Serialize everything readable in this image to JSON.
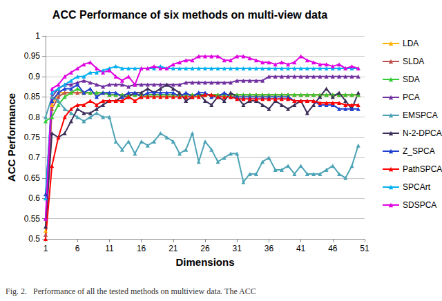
{
  "chart_data": {
    "type": "line",
    "title": "ACC Performance of six methods on multi-view data",
    "x_label": "Dimensions",
    "y_label": "ACC Performance",
    "caption": "Fig. 2.   Performance of all the tested methods on multiview data. The ACC",
    "marker": "triangle",
    "grid": true,
    "legend": "right",
    "x": [
      1,
      2,
      3,
      4,
      5,
      6,
      7,
      8,
      9,
      10,
      11,
      12,
      13,
      14,
      15,
      16,
      17,
      18,
      19,
      20,
      21,
      22,
      23,
      24,
      25,
      26,
      27,
      28,
      29,
      30,
      31,
      32,
      33,
      34,
      35,
      36,
      37,
      38,
      39,
      40,
      41,
      42,
      43,
      44,
      45,
      46,
      47,
      48,
      49,
      50
    ],
    "xlim": [
      1,
      51
    ],
    "xticks": [
      1,
      6,
      11,
      16,
      21,
      26,
      31,
      36,
      41,
      46,
      51
    ],
    "ylim": [
      0.5,
      1
    ],
    "yticks": [
      0.5,
      0.55,
      0.6,
      0.65,
      0.7,
      0.75,
      0.8,
      0.85,
      0.9,
      0.95,
      1
    ],
    "series": [
      {
        "name": "LDA",
        "color": "#FFB000",
        "values": [
          0.52,
          0.83,
          0.86,
          0.86,
          0.86,
          0.86,
          0.86,
          0.86,
          0.86,
          0.86,
          0.855,
          0.855,
          0.855,
          0.855,
          0.855,
          0.855,
          0.855,
          0.855,
          0.855,
          0.855,
          0.855,
          0.855,
          0.855,
          0.855,
          0.855,
          0.855,
          0.855,
          0.855,
          0.855,
          0.855,
          0.855,
          0.855,
          0.855,
          0.855,
          0.855,
          0.855,
          0.855,
          0.855,
          0.855,
          0.855,
          0.855,
          0.855,
          0.855,
          0.855,
          0.855,
          0.855,
          0.855,
          0.855,
          0.855,
          0.855
        ]
      },
      {
        "name": "SLDA",
        "color": "#C0504D",
        "values": [
          0.51,
          0.82,
          0.85,
          0.86,
          0.86,
          0.86,
          0.86,
          0.86,
          0.86,
          0.86,
          0.855,
          0.855,
          0.855,
          0.855,
          0.855,
          0.855,
          0.855,
          0.855,
          0.855,
          0.855,
          0.855,
          0.855,
          0.855,
          0.855,
          0.855,
          0.855,
          0.855,
          0.855,
          0.855,
          0.855,
          0.855,
          0.855,
          0.855,
          0.855,
          0.855,
          0.855,
          0.855,
          0.855,
          0.855,
          0.855,
          0.855,
          0.855,
          0.855,
          0.855,
          0.855,
          0.855,
          0.855,
          0.855,
          0.855,
          0.855
        ]
      },
      {
        "name": "SDA",
        "color": "#33CC33",
        "values": [
          0.79,
          0.8,
          0.83,
          0.85,
          0.86,
          0.87,
          0.86,
          0.86,
          0.86,
          0.86,
          0.855,
          0.855,
          0.855,
          0.855,
          0.855,
          0.855,
          0.855,
          0.855,
          0.855,
          0.855,
          0.855,
          0.855,
          0.855,
          0.855,
          0.855,
          0.855,
          0.855,
          0.855,
          0.855,
          0.855,
          0.855,
          0.855,
          0.855,
          0.855,
          0.855,
          0.855,
          0.855,
          0.855,
          0.855,
          0.855,
          0.855,
          0.855,
          0.855,
          0.855,
          0.855,
          0.855,
          0.855,
          0.855,
          0.855,
          0.855
        ]
      },
      {
        "name": "PCA",
        "color": "#7030A0",
        "values": [
          0.55,
          0.85,
          0.87,
          0.88,
          0.88,
          0.885,
          0.89,
          0.885,
          0.88,
          0.875,
          0.88,
          0.88,
          0.88,
          0.875,
          0.88,
          0.88,
          0.88,
          0.88,
          0.88,
          0.88,
          0.88,
          0.88,
          0.885,
          0.885,
          0.885,
          0.885,
          0.885,
          0.885,
          0.885,
          0.885,
          0.89,
          0.89,
          0.89,
          0.89,
          0.89,
          0.9,
          0.9,
          0.9,
          0.9,
          0.9,
          0.9,
          0.9,
          0.9,
          0.9,
          0.9,
          0.9,
          0.9,
          0.9,
          0.9,
          0.9
        ]
      },
      {
        "name": "EMSPCA",
        "color": "#4BA3B5",
        "values": [
          0.8,
          0.85,
          0.84,
          0.82,
          0.81,
          0.8,
          0.79,
          0.8,
          0.81,
          0.8,
          0.8,
          0.74,
          0.72,
          0.74,
          0.71,
          0.74,
          0.73,
          0.74,
          0.76,
          0.75,
          0.74,
          0.71,
          0.72,
          0.76,
          0.69,
          0.74,
          0.72,
          0.69,
          0.7,
          0.71,
          0.71,
          0.64,
          0.66,
          0.66,
          0.69,
          0.7,
          0.67,
          0.67,
          0.68,
          0.66,
          0.68,
          0.66,
          0.66,
          0.66,
          0.67,
          0.68,
          0.66,
          0.65,
          0.68,
          0.73
        ]
      },
      {
        "name": "N-2-DPCA",
        "color": "#3B2E58",
        "values": [
          0.53,
          0.76,
          0.75,
          0.76,
          0.79,
          0.82,
          0.81,
          0.81,
          0.82,
          0.83,
          0.84,
          0.84,
          0.85,
          0.85,
          0.86,
          0.86,
          0.87,
          0.86,
          0.87,
          0.88,
          0.87,
          0.86,
          0.84,
          0.85,
          0.86,
          0.84,
          0.83,
          0.85,
          0.84,
          0.86,
          0.85,
          0.83,
          0.84,
          0.84,
          0.83,
          0.82,
          0.84,
          0.83,
          0.82,
          0.83,
          0.84,
          0.81,
          0.83,
          0.85,
          0.87,
          0.85,
          0.86,
          0.84,
          0.82,
          0.86
        ]
      },
      {
        "name": "Z_SPCA",
        "color": "#1F3FD0",
        "values": [
          0.61,
          0.84,
          0.86,
          0.87,
          0.87,
          0.88,
          0.86,
          0.87,
          0.85,
          0.86,
          0.86,
          0.86,
          0.85,
          0.86,
          0.86,
          0.85,
          0.86,
          0.86,
          0.86,
          0.86,
          0.86,
          0.85,
          0.86,
          0.85,
          0.86,
          0.86,
          0.85,
          0.85,
          0.86,
          0.85,
          0.85,
          0.85,
          0.85,
          0.85,
          0.85,
          0.85,
          0.85,
          0.85,
          0.85,
          0.84,
          0.84,
          0.84,
          0.84,
          0.83,
          0.83,
          0.83,
          0.82,
          0.82,
          0.82,
          0.82
        ]
      },
      {
        "name": "PathSPCA",
        "color": "#FF0000",
        "values": [
          0.5,
          0.68,
          0.75,
          0.8,
          0.82,
          0.83,
          0.83,
          0.84,
          0.83,
          0.84,
          0.84,
          0.84,
          0.84,
          0.85,
          0.84,
          0.85,
          0.85,
          0.85,
          0.85,
          0.85,
          0.85,
          0.85,
          0.85,
          0.85,
          0.85,
          0.855,
          0.855,
          0.85,
          0.85,
          0.85,
          0.845,
          0.845,
          0.845,
          0.845,
          0.845,
          0.845,
          0.845,
          0.845,
          0.845,
          0.84,
          0.84,
          0.84,
          0.84,
          0.835,
          0.835,
          0.835,
          0.835,
          0.83,
          0.83,
          0.83
        ]
      },
      {
        "name": "SPCArt",
        "color": "#00B0F0",
        "values": [
          0.6,
          0.86,
          0.87,
          0.88,
          0.89,
          0.9,
          0.9,
          0.91,
          0.91,
          0.915,
          0.92,
          0.925,
          0.92,
          0.92,
          0.92,
          0.92,
          0.92,
          0.92,
          0.925,
          0.92,
          0.92,
          0.92,
          0.92,
          0.92,
          0.92,
          0.92,
          0.92,
          0.92,
          0.92,
          0.92,
          0.92,
          0.92,
          0.92,
          0.92,
          0.92,
          0.92,
          0.92,
          0.92,
          0.92,
          0.92,
          0.92,
          0.92,
          0.92,
          0.92,
          0.92,
          0.92,
          0.92,
          0.92,
          0.92,
          0.92
        ]
      },
      {
        "name": "SDSPCA",
        "color": "#E000E0",
        "values": [
          0.55,
          0.87,
          0.88,
          0.9,
          0.91,
          0.92,
          0.93,
          0.935,
          0.92,
          0.91,
          0.915,
          0.9,
          0.89,
          0.9,
          0.88,
          0.92,
          0.92,
          0.925,
          0.92,
          0.92,
          0.93,
          0.935,
          0.94,
          0.94,
          0.95,
          0.95,
          0.95,
          0.95,
          0.94,
          0.94,
          0.95,
          0.95,
          0.945,
          0.94,
          0.935,
          0.935,
          0.93,
          0.935,
          0.93,
          0.935,
          0.95,
          0.94,
          0.935,
          0.93,
          0.93,
          0.925,
          0.93,
          0.92,
          0.925,
          0.92
        ]
      }
    ]
  }
}
